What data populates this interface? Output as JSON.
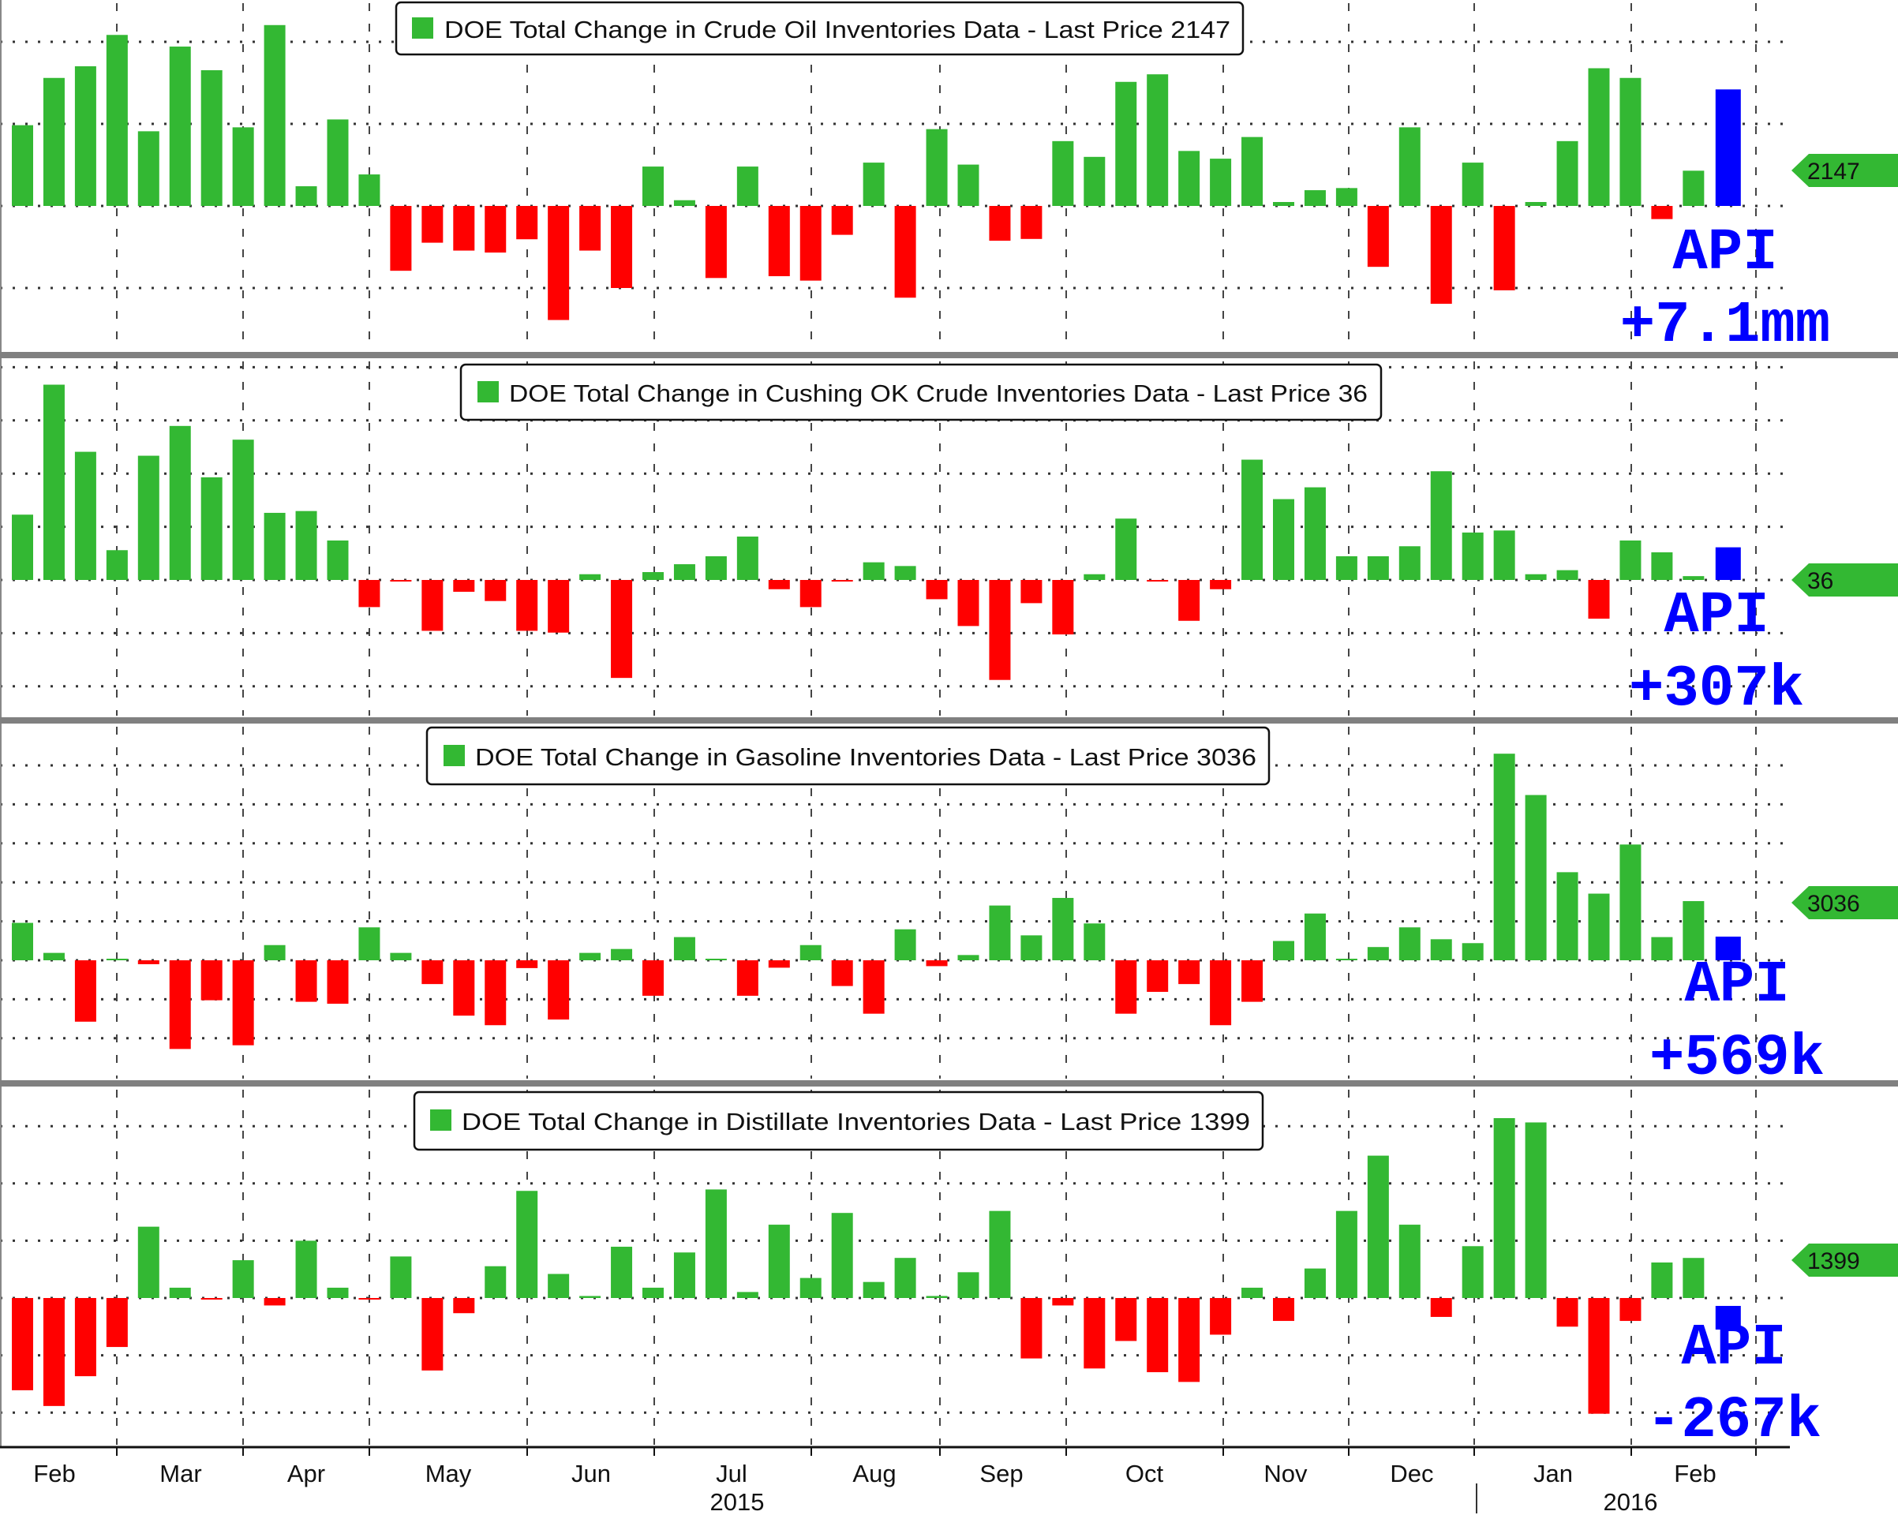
{
  "colors": {
    "up": "#33b833",
    "down": "#ff0000",
    "api": "#0000ff",
    "tag": "#33b833",
    "separator": "#808080"
  },
  "chart_data": [
    {
      "type": "bar",
      "title": "DOE Total Change in Crude Oil Inventories Data - Last Price 2147",
      "legend": "DOE Total Change in Crude Oil Inventories Data - Last Price 2147",
      "legend_placement": "top-center",
      "last_price": "2147",
      "api_label": "API",
      "api_text": "+7.1mm",
      "api_value": 7100,
      "y_grid_step": 5000,
      "grid": true,
      "values": [
        4920,
        7800,
        8510,
        10420,
        4550,
        9710,
        8270,
        4790,
        11020,
        1200,
        5270,
        1920,
        -3950,
        -2240,
        -2720,
        -2840,
        -2030,
        -6950,
        -2720,
        -5000,
        2400,
        350,
        -4390,
        2400,
        -4280,
        -4550,
        -1760,
        2640,
        -5590,
        4680,
        2520,
        -2120,
        -2010,
        3950,
        2990,
        7560,
        8020,
        3350,
        2880,
        4200,
        240,
        960,
        1090,
        -3710,
        4790,
        -5960,
        2640,
        -5140,
        240,
        3950,
        8390,
        7800,
        -800,
        2147
      ]
    },
    {
      "type": "bar",
      "title": "DOE Total Change in Cushing OK Crude Inventories Data - Last Price 36",
      "legend": "DOE Total Change in Cushing OK Crude Inventories Data - Last Price 36",
      "legend_placement": "top-center",
      "last_price": "36",
      "api_label": "API",
      "api_text": "+307k",
      "api_value": 307,
      "y_grid_step": 500,
      "grid": true,
      "values": [
        614,
        1836,
        1205,
        280,
        1168,
        1448,
        965,
        1319,
        631,
        648,
        371,
        -255,
        -12,
        -478,
        -111,
        -198,
        -478,
        -495,
        54,
        -921,
        74,
        148,
        223,
        408,
        -87,
        -255,
        -12,
        166,
        131,
        -181,
        -433,
        -940,
        -218,
        -512,
        54,
        577,
        -12,
        -384,
        -87,
        1131,
        760,
        871,
        223,
        223,
        317,
        1022,
        446,
        465,
        54,
        92,
        -364,
        371,
        260,
        36
      ]
    },
    {
      "type": "bar",
      "title": "DOE Total Change in Gasoline Inventories Data - Last Price 3036",
      "legend": "DOE Total Change in Gasoline Inventories Data - Last Price 3036",
      "legend_placement": "top-center",
      "last_price": "3036",
      "api_label": "API",
      "api_text": "+569k",
      "api_value": 569,
      "y_grid_step": 2000,
      "grid": true,
      "values": [
        1920,
        380,
        -3150,
        50,
        -200,
        -4550,
        -2050,
        -4360,
        780,
        -2130,
        -2230,
        1690,
        380,
        -1220,
        -2840,
        -3330,
        -400,
        -3040,
        380,
        580,
        -1820,
        1190,
        30,
        -1820,
        -380,
        780,
        -1320,
        -2740,
        1590,
        -300,
        270,
        2810,
        1280,
        3200,
        1890,
        -2740,
        -1620,
        -1220,
        -3330,
        -2130,
        990,
        2400,
        70,
        680,
        1690,
        1080,
        880,
        10600,
        8480,
        4520,
        3420,
        5940,
        1190,
        3036
      ]
    },
    {
      "type": "bar",
      "title": "DOE Total Change in Distillate Inventories Data - Last Price 1399",
      "legend": "DOE Total Change in Distillate Inventories Data - Last Price 1399",
      "legend_placement": "top-center",
      "last_price": "1399",
      "api_label": "API",
      "api_text": "-267k",
      "api_value": -267,
      "y_grid_step": 2000,
      "grid": true,
      "values": [
        -3220,
        -3770,
        -2730,
        -1710,
        2490,
        360,
        -50,
        1320,
        -260,
        2000,
        360,
        -50,
        1450,
        -2530,
        -530,
        1110,
        3740,
        840,
        70,
        1790,
        360,
        1590,
        3790,
        210,
        2560,
        700,
        2970,
        560,
        1400,
        70,
        900,
        3040,
        -2110,
        -260,
        -2460,
        -1500,
        -2590,
        -2930,
        -1280,
        360,
        -800,
        1030,
        3040,
        4970,
        2560,
        -660,
        1810,
        6280,
        6130,
        -1000,
        -4040,
        -800,
        1240,
        1399
      ]
    }
  ],
  "x_axis": {
    "months": [
      "Feb",
      "Mar",
      "Apr",
      "May",
      "Jun",
      "Jul",
      "Aug",
      "Sep",
      "Oct",
      "Nov",
      "Dec",
      "Jan",
      "Feb"
    ],
    "years": [
      "2015",
      "2016"
    ]
  }
}
